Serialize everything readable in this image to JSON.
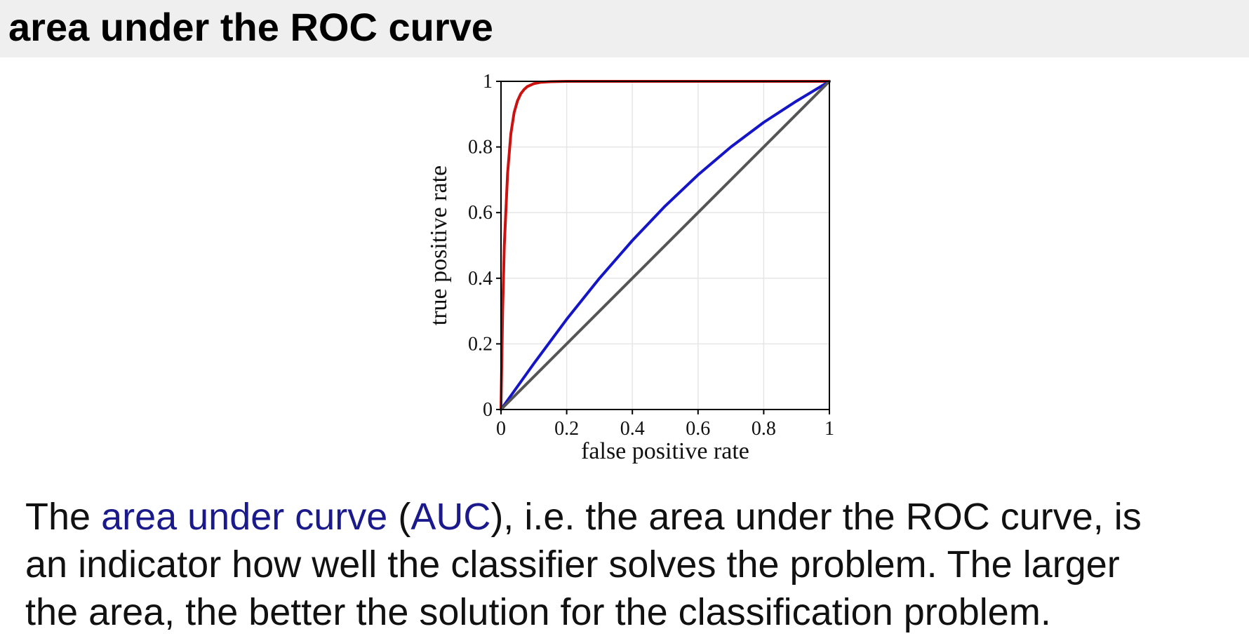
{
  "slide": {
    "title": "area under the ROC curve"
  },
  "colors": {
    "header_background": "#efefef",
    "link_text": "#1a1a8c",
    "grid": "#e6e6e6",
    "axis": "#000000"
  },
  "chart_data": {
    "type": "line",
    "title": "",
    "xlabel": "false positive rate",
    "ylabel": "true positive rate",
    "xlim": [
      0,
      1
    ],
    "ylim": [
      0,
      1
    ],
    "xticks": [
      0,
      0.2,
      0.4,
      0.6,
      0.8,
      1
    ],
    "yticks": [
      0,
      0.2,
      0.4,
      0.6,
      0.8,
      1
    ],
    "xtick_labels": [
      "0",
      "0.2",
      "0.4",
      "0.6",
      "0.8",
      "1"
    ],
    "ytick_labels": [
      "0",
      "0.2",
      "0.4",
      "0.6",
      "0.8",
      "1"
    ],
    "grid": true,
    "legend": "none",
    "series": [
      {
        "color": "#cc1111",
        "x": [
          0,
          0.005,
          0.01,
          0.02,
          0.03,
          0.04,
          0.05,
          0.06,
          0.07,
          0.08,
          0.1,
          0.12,
          0.15,
          0.2,
          0.3,
          0.5,
          0.7,
          1.0
        ],
        "y": [
          0,
          0.3,
          0.5,
          0.72,
          0.84,
          0.905,
          0.94,
          0.962,
          0.975,
          0.984,
          0.993,
          0.997,
          0.999,
          1.0,
          1.0,
          1.0,
          1.0,
          1.0
        ]
      },
      {
        "color": "#1515c8",
        "x": [
          0,
          0.1,
          0.2,
          0.3,
          0.4,
          0.5,
          0.6,
          0.7,
          0.8,
          0.9,
          1.0
        ],
        "y": [
          0,
          0.14,
          0.275,
          0.4,
          0.515,
          0.62,
          0.715,
          0.8,
          0.875,
          0.94,
          1.0
        ]
      },
      {
        "color": "#555555",
        "x": [
          0,
          1
        ],
        "y": [
          0,
          1
        ]
      }
    ]
  },
  "body": {
    "line1_before": "The ",
    "term_auc_full": "area under curve",
    "line1_middle": " (",
    "term_auc_abbr": "AUC",
    "line1_after": "), i.e. the area under the ROC curve, is",
    "line2": "an indicator how well the classifier solves the problem.  The larger",
    "line3": "the area, the better the solution for the classification problem."
  }
}
